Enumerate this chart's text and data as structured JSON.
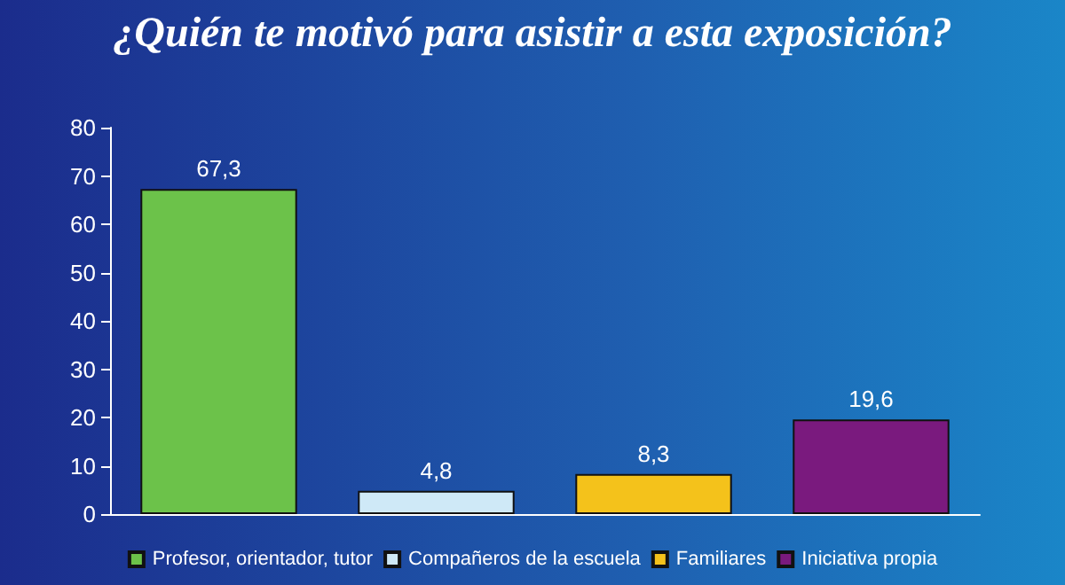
{
  "chart_data": {
    "type": "bar",
    "title": "¿Quién te motivó para asistir a esta exposición?",
    "categories": [
      null,
      null,
      null,
      null
    ],
    "series": [
      {
        "name": "Profesor, orientador, tutor",
        "color": "#6cc24a",
        "values": [
          67.3,
          null,
          null,
          null
        ],
        "value_labels": [
          "67,3",
          null,
          null,
          null
        ]
      },
      {
        "name": "Compañeros de la escuela",
        "color": "#cfe9f7",
        "values": [
          null,
          4.8,
          null,
          null
        ],
        "value_labels": [
          null,
          "4,8",
          null,
          null
        ]
      },
      {
        "name": "Familiares",
        "color": "#f4c21b",
        "values": [
          null,
          null,
          8.3,
          null
        ],
        "value_labels": [
          null,
          null,
          "8,3",
          null
        ]
      },
      {
        "name": "Iniciativa propia",
        "color": "#7a1a7e",
        "values": [
          null,
          null,
          null,
          19.6
        ],
        "value_labels": [
          null,
          null,
          null,
          "19,6"
        ]
      }
    ],
    "stacked": true,
    "ylim": [
      0,
      80
    ],
    "yticks": [
      0,
      10,
      20,
      30,
      40,
      50,
      60,
      70,
      80
    ],
    "grid": false,
    "legend": "bottom"
  }
}
